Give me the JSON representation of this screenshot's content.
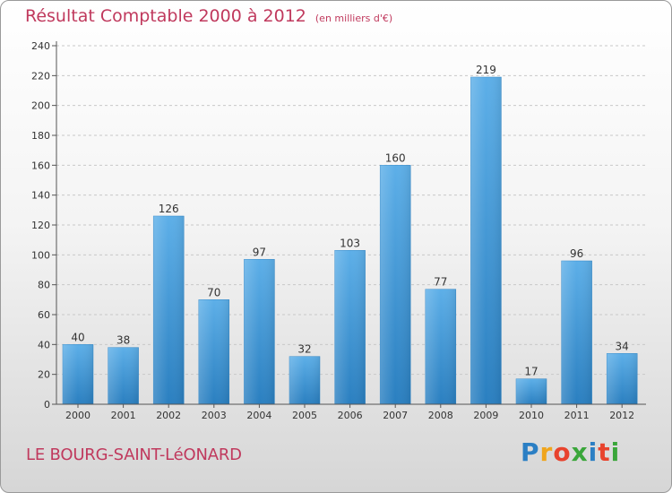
{
  "chart_data": {
    "type": "bar",
    "title": "Résultat Comptable 2000 à 2012",
    "unit_label": "(en milliers d'€)",
    "categories": [
      "2000",
      "2001",
      "2002",
      "2003",
      "2004",
      "2005",
      "2006",
      "2007",
      "2008",
      "2009",
      "2010",
      "2011",
      "2012"
    ],
    "values": [
      40,
      38,
      126,
      70,
      97,
      32,
      103,
      160,
      77,
      219,
      17,
      96,
      34
    ],
    "value_labels": [
      "40",
      "38",
      "126",
      "70",
      "97",
      "32",
      "103",
      "160",
      "77",
      "219",
      "17",
      "96",
      "34"
    ],
    "yticks": [
      "0",
      "20",
      "40",
      "60",
      "80",
      "100",
      "120",
      "140",
      "160",
      "180",
      "200",
      "220",
      "240"
    ],
    "ylim": [
      0,
      240
    ],
    "xlabel": "",
    "ylabel": "",
    "bar_color": "#3d97d8"
  },
  "location": "LE BOURG-SAINT-LéONARD",
  "brand": {
    "letters": [
      "P",
      "r",
      "o",
      "x",
      "i",
      "t",
      "i"
    ],
    "colors": [
      "#2b7fc4",
      "#f0a51c",
      "#e8432d",
      "#3aa63a",
      "#2b7fc4",
      "#e8432d",
      "#3aa63a"
    ]
  }
}
